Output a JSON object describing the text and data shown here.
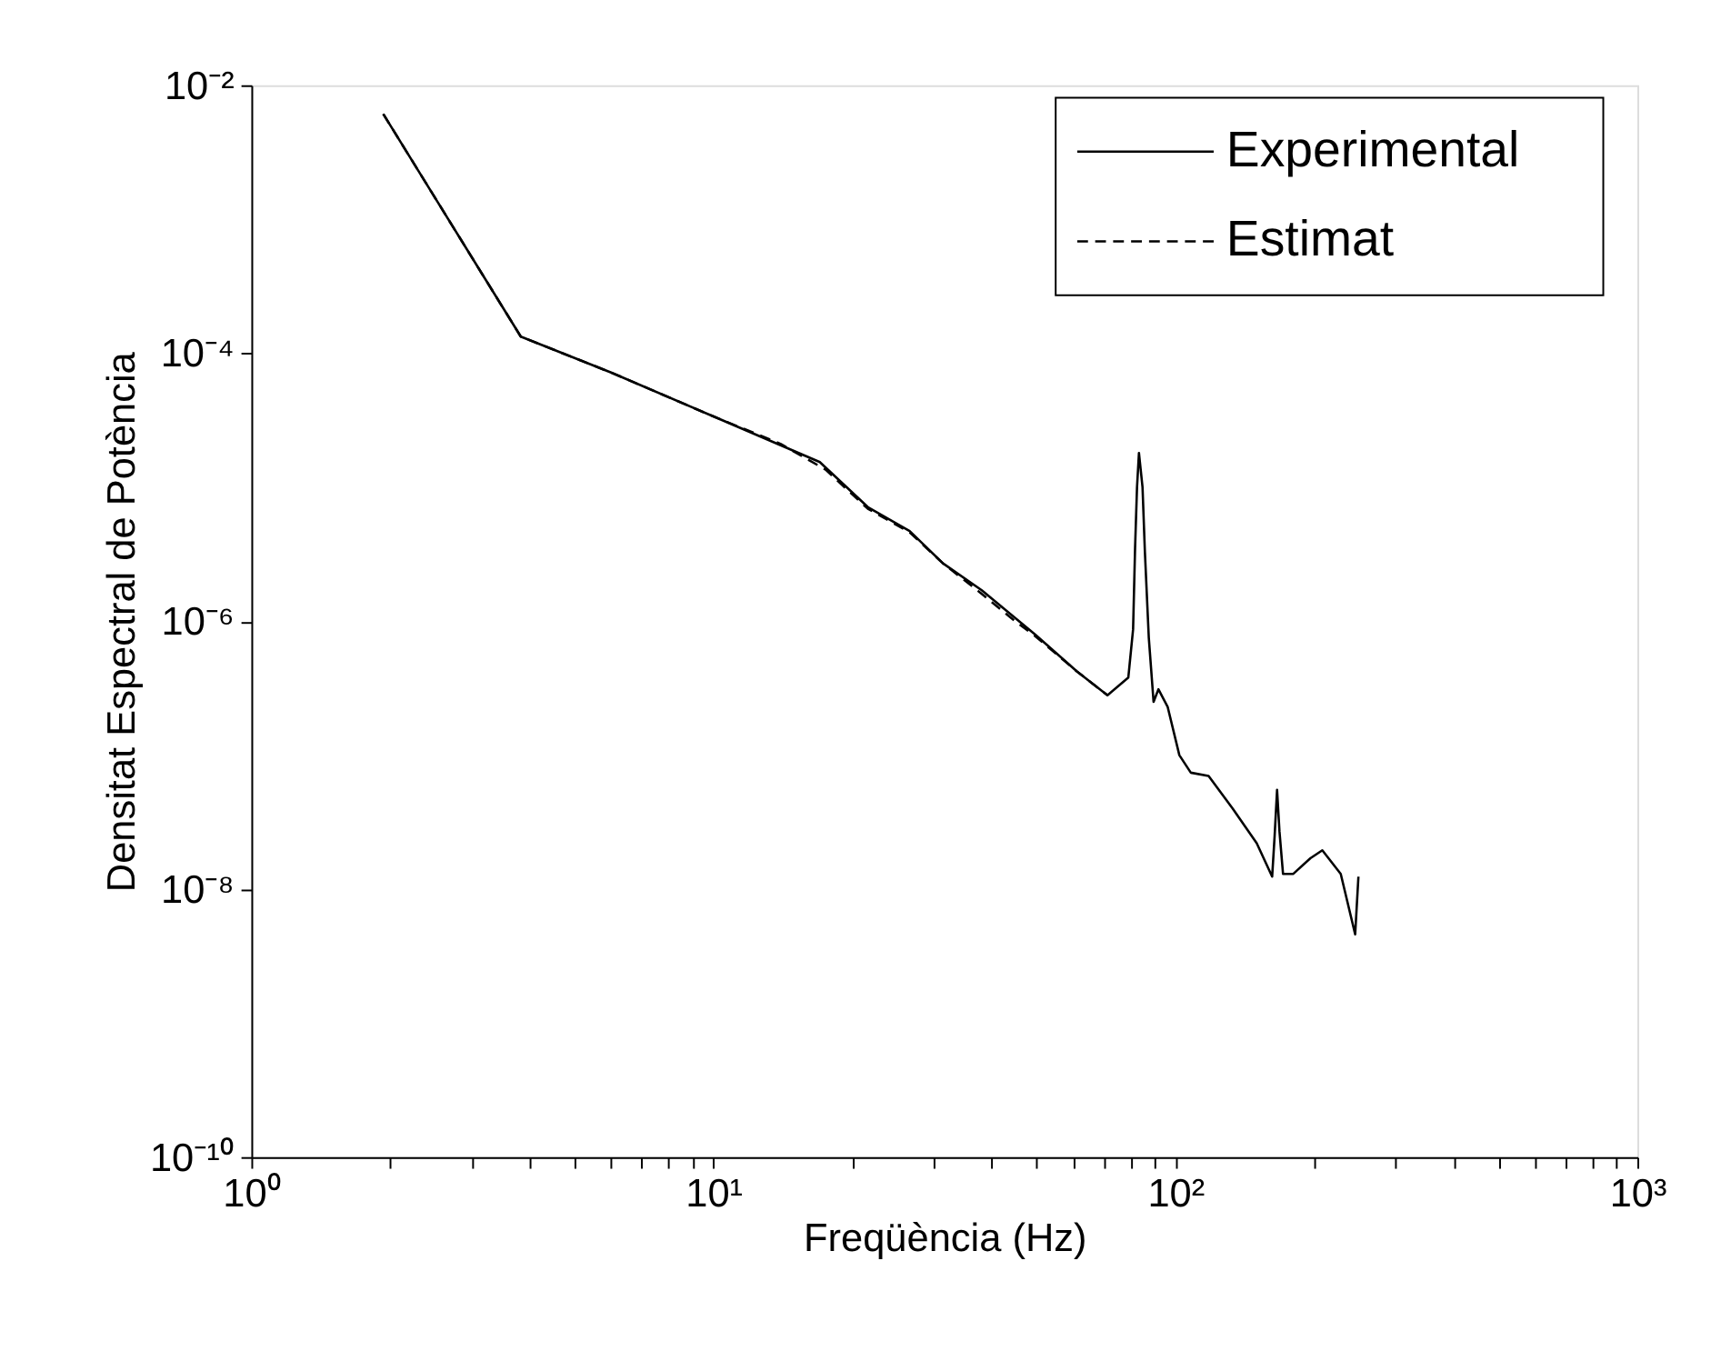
{
  "chart_data": {
    "type": "line",
    "xlabel": "Freqüència (Hz)",
    "ylabel": "Densitat Espectral de Potència",
    "log": "xy",
    "grid": false,
    "legend": "top right",
    "xlim": [
      1,
      1000
    ],
    "ylim": [
      1e-10,
      0.01
    ],
    "xticks": [
      {
        "value": 1,
        "label": "10⁰"
      },
      {
        "value": 2,
        "label": null
      },
      {
        "value": 3,
        "label": null
      },
      {
        "value": 4,
        "label": null
      },
      {
        "value": 5,
        "label": null
      },
      {
        "value": 6,
        "label": null
      },
      {
        "value": 7,
        "label": null
      },
      {
        "value": 8,
        "label": null
      },
      {
        "value": 9,
        "label": null
      },
      {
        "value": 10,
        "label": "10¹"
      },
      {
        "value": 20,
        "label": null
      },
      {
        "value": 30,
        "label": null
      },
      {
        "value": 40,
        "label": null
      },
      {
        "value": 50,
        "label": null
      },
      {
        "value": 60,
        "label": null
      },
      {
        "value": 70,
        "label": null
      },
      {
        "value": 80,
        "label": null
      },
      {
        "value": 90,
        "label": null
      },
      {
        "value": 100,
        "label": "10²"
      },
      {
        "value": 200,
        "label": null
      },
      {
        "value": 300,
        "label": null
      },
      {
        "value": 400,
        "label": null
      },
      {
        "value": 500,
        "label": null
      },
      {
        "value": 600,
        "label": null
      },
      {
        "value": 700,
        "label": null
      },
      {
        "value": 800,
        "label": null
      },
      {
        "value": 900,
        "label": null
      },
      {
        "value": 1000,
        "label": "10³"
      }
    ],
    "yticks": [
      {
        "value": 1e-10,
        "label": "10⁻¹⁰"
      },
      {
        "value": 1e-08,
        "label": "10⁻⁸"
      },
      {
        "value": 1e-06,
        "label": "10⁻⁶"
      },
      {
        "value": 0.0001,
        "label": "10⁻⁴"
      },
      {
        "value": 0.01,
        "label": "10⁻²"
      }
    ],
    "series": [
      {
        "name": "Experimental",
        "color": "#000000",
        "line_style": "solid",
        "x": [
          1.93,
          3.83,
          5.99,
          9.95,
          17.0,
          21.6,
          26.6,
          31.4,
          38.1,
          49.8,
          61.3,
          71.3,
          79.1,
          81.0,
          81.8,
          82.6,
          83.4,
          84.9,
          85.9,
          87.6,
          89.7,
          91.9,
          96.2,
          102,
          108,
          118,
          133,
          150,
          162,
          164,
          166,
          168,
          171,
          180,
          196,
          208,
          228,
          245,
          249
        ],
        "values": [
          0.0061,
          0.000133,
          7.2e-05,
          3.4e-05,
          1.54e-05,
          7.1e-06,
          4.7e-06,
          2.7e-06,
          1.7e-06,
          7.9e-07,
          4.2e-07,
          2.8e-07,
          3.8e-07,
          8.7e-07,
          3.5e-06,
          1e-05,
          1.8e-05,
          1e-05,
          3.3e-06,
          7.5e-07,
          2.5e-07,
          3.1e-07,
          2.3e-07,
          1e-07,
          7.4e-08,
          7e-08,
          4e-08,
          2.2e-08,
          1.24e-08,
          2.5e-08,
          5.5e-08,
          2.7e-08,
          1.3e-08,
          1.3e-08,
          1.7e-08,
          1.95e-08,
          1.3e-08,
          4.6e-09,
          1.24e-08
        ]
      },
      {
        "name": "Estimat",
        "color": "#000000",
        "line_style": "dashed",
        "x": [
          1.93,
          3.83,
          5.99,
          9.95,
          14.0,
          17.5,
          21.6,
          26.6,
          31.4,
          38.1,
          45.0,
          49.8,
          61.3,
          71.3
        ],
        "values": [
          0.0061,
          0.000133,
          7.2e-05,
          3.4e-05,
          2.1e-05,
          1.35e-05,
          6.9e-06,
          4.6e-06,
          2.7e-06,
          1.6e-06,
          1e-06,
          7.7e-07,
          4.2e-07,
          2.8e-07
        ]
      }
    ]
  }
}
